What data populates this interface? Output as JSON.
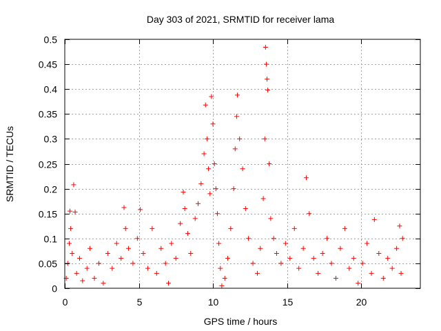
{
  "chart_data": {
    "type": "scatter",
    "title": "Day 303 of 2021, SRMTID for receiver lama",
    "xlabel": "GPS time / hours",
    "ylabel": "SRMTID / TECUs",
    "xlim": [
      0,
      24
    ],
    "ylim": [
      0,
      0.5
    ],
    "x_ticks": [
      0,
      5,
      10,
      15,
      20
    ],
    "y_ticks": [
      0,
      0.05,
      0.1,
      0.15,
      0.2,
      0.25,
      0.3,
      0.35,
      0.4,
      0.45,
      0.5
    ],
    "x_tick_labels": [
      "0",
      "5",
      "10",
      "15",
      "20"
    ],
    "y_tick_labels": [
      "0",
      "0.05",
      "0.1",
      "0.15",
      "0.2",
      "0.25",
      "0.3",
      "0.35",
      "0.4",
      "0.45",
      "0.5"
    ],
    "grid": true,
    "marker": "+",
    "marker_color": "#ff0000",
    "series": [
      {
        "name": "SRMTID",
        "points": [
          [
            0.1,
            0.02
          ],
          [
            0.2,
            0.05
          ],
          [
            0.3,
            0.09
          ],
          [
            0.35,
            0.155
          ],
          [
            0.4,
            0.12
          ],
          [
            0.5,
            0.07
          ],
          [
            0.6,
            0.208
          ],
          [
            0.7,
            0.153
          ],
          [
            0.8,
            0.03
          ],
          [
            1.0,
            0.06
          ],
          [
            1.2,
            0.015
          ],
          [
            1.5,
            0.04
          ],
          [
            1.7,
            0.08
          ],
          [
            2.0,
            0.02
          ],
          [
            2.3,
            0.05
          ],
          [
            2.6,
            0.01
          ],
          [
            2.9,
            0.07
          ],
          [
            3.2,
            0.04
          ],
          [
            3.5,
            0.09
          ],
          [
            3.8,
            0.06
          ],
          [
            4.0,
            0.162
          ],
          [
            4.1,
            0.12
          ],
          [
            4.3,
            0.08
          ],
          [
            4.6,
            0.05
          ],
          [
            4.9,
            0.1
          ],
          [
            5.1,
            0.158
          ],
          [
            5.3,
            0.07
          ],
          [
            5.6,
            0.04
          ],
          [
            5.9,
            0.12
          ],
          [
            6.2,
            0.03
          ],
          [
            6.5,
            0.08
          ],
          [
            6.8,
            0.05
          ],
          [
            7.0,
            0.01
          ],
          [
            7.2,
            0.09
          ],
          [
            7.5,
            0.06
          ],
          [
            7.8,
            0.13
          ],
          [
            8.0,
            0.193
          ],
          [
            8.1,
            0.16
          ],
          [
            8.3,
            0.11
          ],
          [
            8.5,
            0.07
          ],
          [
            8.8,
            0.14
          ],
          [
            9.0,
            0.17
          ],
          [
            9.2,
            0.21
          ],
          [
            9.4,
            0.27
          ],
          [
            9.5,
            0.368
          ],
          [
            9.6,
            0.3
          ],
          [
            9.7,
            0.24
          ],
          [
            9.8,
            0.19
          ],
          [
            9.9,
            0.385
          ],
          [
            10.0,
            0.33
          ],
          [
            10.1,
            0.25
          ],
          [
            10.2,
            0.2
          ],
          [
            10.3,
            0.15
          ],
          [
            10.4,
            0.09
          ],
          [
            10.5,
            0.04
          ],
          [
            10.6,
            0.005
          ],
          [
            10.8,
            0.02
          ],
          [
            11.0,
            0.06
          ],
          [
            11.2,
            0.12
          ],
          [
            11.4,
            0.2
          ],
          [
            11.5,
            0.28
          ],
          [
            11.6,
            0.345
          ],
          [
            11.65,
            0.388
          ],
          [
            11.8,
            0.3
          ],
          [
            12.0,
            0.24
          ],
          [
            12.2,
            0.16
          ],
          [
            12.4,
            0.1
          ],
          [
            12.7,
            0.05
          ],
          [
            13.0,
            0.03
          ],
          [
            13.2,
            0.08
          ],
          [
            13.4,
            0.18
          ],
          [
            13.5,
            0.3
          ],
          [
            13.55,
            0.484
          ],
          [
            13.6,
            0.45
          ],
          [
            13.65,
            0.42
          ],
          [
            13.7,
            0.398
          ],
          [
            13.8,
            0.25
          ],
          [
            13.9,
            0.14
          ],
          [
            14.1,
            0.1
          ],
          [
            14.3,
            0.07
          ],
          [
            14.6,
            0.05
          ],
          [
            14.9,
            0.09
          ],
          [
            15.2,
            0.06
          ],
          [
            15.5,
            0.12
          ],
          [
            15.8,
            0.04
          ],
          [
            16.1,
            0.08
          ],
          [
            16.3,
            0.222
          ],
          [
            16.5,
            0.15
          ],
          [
            16.8,
            0.06
          ],
          [
            17.1,
            0.03
          ],
          [
            17.4,
            0.07
          ],
          [
            17.7,
            0.1
          ],
          [
            18.0,
            0.05
          ],
          [
            18.3,
            0.02
          ],
          [
            18.6,
            0.08
          ],
          [
            18.9,
            0.12
          ],
          [
            19.2,
            0.04
          ],
          [
            19.5,
            0.06
          ],
          [
            19.8,
            0.01
          ],
          [
            20.1,
            0.05
          ],
          [
            20.4,
            0.09
          ],
          [
            20.7,
            0.03
          ],
          [
            20.9,
            0.138
          ],
          [
            21.2,
            0.07
          ],
          [
            21.5,
            0.02
          ],
          [
            21.8,
            0.06
          ],
          [
            22.1,
            0.04
          ],
          [
            22.4,
            0.08
          ],
          [
            22.6,
            0.125
          ],
          [
            22.7,
            0.03
          ],
          [
            22.8,
            0.1
          ]
        ]
      }
    ]
  }
}
